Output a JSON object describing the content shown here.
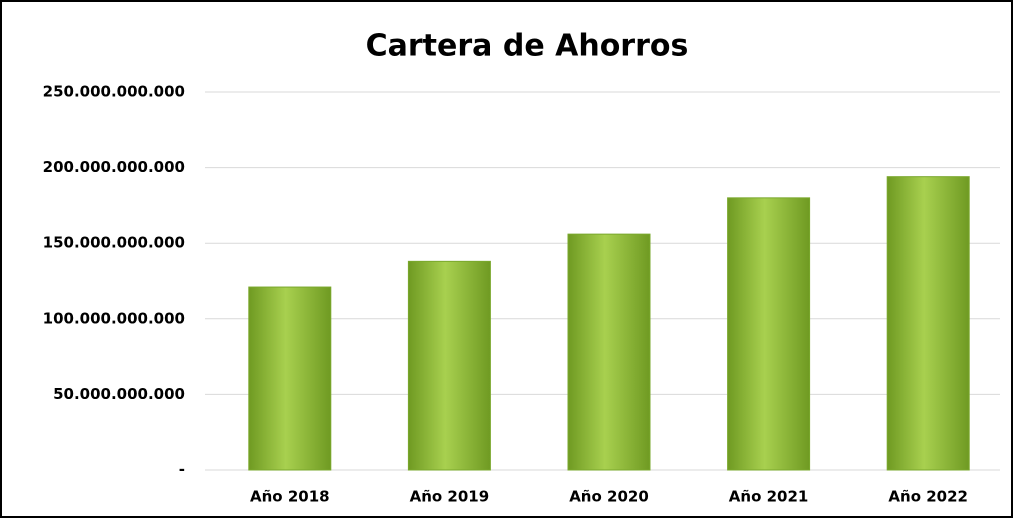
{
  "chart_data": {
    "type": "bar",
    "title": "Cartera de Ahorros",
    "categories": [
      "Año 2018",
      "Año 2019",
      "Año 2020",
      "Año 2021",
      "Año 2022"
    ],
    "values": [
      121000000000,
      138000000000,
      156000000000,
      180000000000,
      194000000000
    ],
    "color": "#8fba3a",
    "ylim": [
      0,
      250000000000
    ],
    "yticks": [
      {
        "value": 0,
        "label": "-"
      },
      {
        "value": 50000000000,
        "label": "50.000.000.000"
      },
      {
        "value": 100000000000,
        "label": "100.000.000.000"
      },
      {
        "value": 150000000000,
        "label": "150.000.000.000"
      },
      {
        "value": 200000000000,
        "label": "200.000.000.000"
      },
      {
        "value": 250000000000,
        "label": "250.000.000.000"
      }
    ],
    "grid": true
  }
}
